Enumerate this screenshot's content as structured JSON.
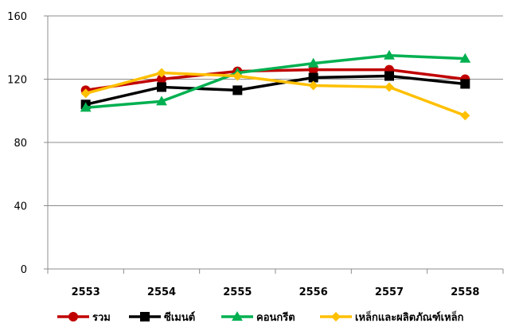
{
  "chart_data": {
    "type": "line",
    "title": "",
    "xlabel": "",
    "ylabel": "",
    "categories": [
      "2553",
      "2554",
      "2555",
      "2556",
      "2557",
      "2558"
    ],
    "ylim": [
      0,
      160
    ],
    "yticks": [
      "0",
      "40",
      "80",
      "120",
      "160"
    ],
    "grid": true,
    "legend_position": "bottom",
    "series": [
      {
        "name": "รวม",
        "color": "#c00000",
        "marker": "circle",
        "values": [
          113,
          120,
          125,
          126,
          126,
          120
        ]
      },
      {
        "name": "ซีเมนต์",
        "color": "#000000",
        "marker": "square",
        "values": [
          104,
          115,
          113,
          121,
          122,
          117
        ]
      },
      {
        "name": "คอนกรีต",
        "color": "#00b050",
        "marker": "triangle",
        "values": [
          102,
          106,
          124,
          130,
          135,
          133
        ]
      },
      {
        "name": "เหล็กและผลิตภัณฑ์เหล็ก",
        "color": "#ffc000",
        "marker": "diamond",
        "values": [
          111,
          124,
          122,
          116,
          115,
          97
        ]
      }
    ]
  }
}
